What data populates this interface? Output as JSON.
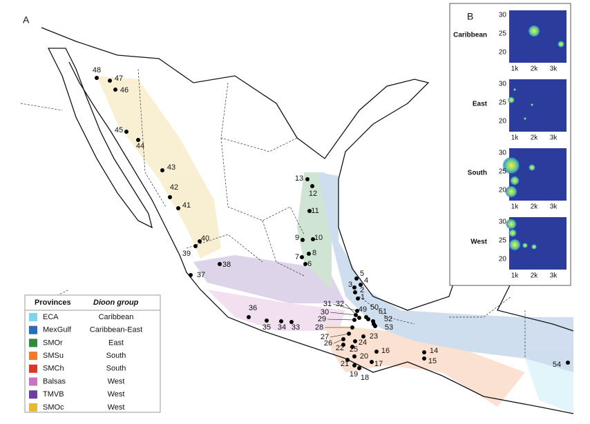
{
  "panel_a": {
    "label": "A",
    "sites": [
      "1",
      "2",
      "3",
      "4",
      "5",
      "6",
      "7",
      "8",
      "9",
      "10",
      "11",
      "12",
      "13",
      "14",
      "15",
      "16",
      "17",
      "18",
      "19",
      "20",
      "21",
      "22",
      "23",
      "24",
      "25",
      "26",
      "27",
      "28",
      "29",
      "30",
      "31",
      "32",
      "33",
      "34",
      "35",
      "36",
      "37",
      "38",
      "39",
      "40",
      "41",
      "42",
      "43",
      "44",
      "45",
      "46",
      "47",
      "48",
      "49",
      "50",
      "51",
      "52",
      "53",
      "54"
    ]
  },
  "legend": {
    "header": [
      "Provinces",
      "Dioon group"
    ],
    "rows": [
      {
        "province": "ECA",
        "group": "Caribbean",
        "color": "#7fd3ef"
      },
      {
        "province": "MexGulf",
        "group": "Caribbean-East",
        "color": "#2a6bb8"
      },
      {
        "province": "SMOr",
        "group": "East",
        "color": "#2f8a3e"
      },
      {
        "province": "SMSu",
        "group": "South",
        "color": "#f07a32"
      },
      {
        "province": "SMCh",
        "group": "South",
        "color": "#d83a2a"
      },
      {
        "province": "Balsas",
        "group": "West",
        "color": "#c974c2"
      },
      {
        "province": "TMVB",
        "group": "West",
        "color": "#6a3fa0"
      },
      {
        "province": "SMOc",
        "group": "West",
        "color": "#e4b93a"
      }
    ]
  },
  "panel_b": {
    "label": "B",
    "y_ticks": [
      "30",
      "25",
      "20"
    ],
    "x_ticks": [
      "1k",
      "2k",
      "3k"
    ],
    "panels": [
      "Caribbean",
      "East",
      "South",
      "West"
    ]
  }
}
